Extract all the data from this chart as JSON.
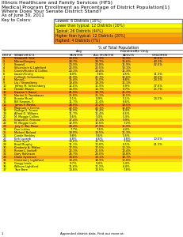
{
  "title_lines": [
    "Illinois Healthcare and Family Services (HFS)",
    "Medical Program Enrollment as Percentage of District Population[1]",
    "Where Does Your Senate District Stand?",
    "As of June 30, 2011"
  ],
  "key_title": "Key to Colors:",
  "legend": [
    {
      "label": "Lowest: 6 Districts (10%)",
      "color": "#FFFFFF"
    },
    {
      "label": "Lower than typical: 12 Districts (20%)",
      "color": "#FFFF00"
    },
    {
      "label": "Typical: 26 Districts (44%)",
      "color": "#FFD700"
    },
    {
      "label": "Higher than typical: 12 Districts (20%)",
      "color": "#FFA500"
    },
    {
      "label": "Highest: 4 Districts (7%)",
      "color": "#FF8C00"
    }
  ],
  "header1": "% of Total Population",
  "header2a": "Any",
  "header2b": "FamiliesMe Only",
  "col_headers": [
    "DIST#",
    "SENATOR/D.S.",
    "MONTHS",
    "ALL MONTHS",
    "ADULTS",
    "CHILDREN"
  ],
  "rows": [
    {
      "dist": "1",
      "senator": "Steans/M. Fine",
      "color": "#FF8C00",
      "months": "23.9%",
      "all_months": "22.9%",
      "adults": "13.9%",
      "children": "35.0%"
    },
    {
      "dist": "2",
      "senator": "Mulroe/Gregory",
      "color": "#FFA500",
      "months": "28.7%",
      "all_months": "28.7%",
      "adults": "16.6%",
      "children": "43.1%"
    },
    {
      "dist": "3",
      "senator": "Steans/I.",
      "color": "#FFD700",
      "months": "20.9%",
      "all_months": "20.8%",
      "adults": "11.9%",
      "children": "32.0%"
    },
    {
      "dist": "4",
      "senator": "Silverstein & Lightford",
      "color": "#FFD700",
      "months": "22.9%",
      "all_months": "22.5%",
      "adults": "13.1%",
      "children": ""
    },
    {
      "dist": "5",
      "senator": "Cronin/Hunter & Collins",
      "color": "#FFD700",
      "months": "20.1%",
      "all_months": "19.4%",
      "adults": "11.3%",
      "children": ""
    },
    {
      "dist": "6",
      "senator": "Lauzen/Crotty",
      "color": "#FFFF00",
      "months": "8.0%",
      "all_months": "7.8%",
      "adults": "4.5%",
      "children": "11.3%"
    },
    {
      "dist": "7",
      "senator": "Collins/J. Schuneberg",
      "color": "#FFD700",
      "months": "21.9%",
      "all_months": "21.7%",
      "adults": "12.6%",
      "children": "33.5%"
    },
    {
      "dist": "8",
      "senator": "Munro/L.",
      "color": "#FFD700",
      "months": "15.4%",
      "all_months": "15.0%",
      "adults": "8.8%",
      "children": "23.3%"
    },
    {
      "dist": "9",
      "senator": "Liu / Strandberg",
      "color": "#FFD700",
      "months": "19.4%",
      "all_months": "19.2%",
      "adults": "11.1%",
      "children": ""
    },
    {
      "dist": "10",
      "senator": "Jeffrey M. Schoenberg",
      "color": "#FFFF00",
      "months": "12.0%",
      "all_months": "11.9%",
      "adults": "6.9%",
      "children": "17.6%"
    },
    {
      "dist": "11",
      "senator": "Hendin Munro",
      "color": "#FFD700",
      "months": "16.9%",
      "all_months": "16.7%",
      "adults": "9.7%",
      "children": "25.7%"
    },
    {
      "dist": "12",
      "senator": "Kwame Y. Raoul",
      "color": "#FF8C00",
      "months": "41.9%",
      "all_months": "39.7%",
      "adults": "21.2%",
      "children": ""
    },
    {
      "dist": "13",
      "senator": "Martini S. Trumbauer",
      "color": "#FFD700",
      "months": "25.8%",
      "all_months": "25.1%",
      "adults": "14.5%",
      "children": ""
    },
    {
      "dist": "14",
      "senator": "Bonnie Murel",
      "color": "#FFFF00",
      "months": "9.1%",
      "all_months": "8.9%",
      "adults": "5.1%",
      "children": "13.5%"
    },
    {
      "dist": "15",
      "senator": "Bill Kwanas, F.",
      "color": "#FFFF00",
      "months": "11.7%",
      "all_months": "11.4%",
      "adults": "6.6%",
      "children": ""
    },
    {
      "dist": "16",
      "senator": "James F. Meeks",
      "color": "#FF8C00",
      "months": "38.9%",
      "all_months": "37.2%",
      "adults": "19.5%",
      "children": ""
    },
    {
      "dist": "17",
      "senator": "Magnum e Collins",
      "color": "#FFD700",
      "months": "22.9%",
      "all_months": "22.3%",
      "adults": "12.8%",
      "children": ""
    },
    {
      "dist": "18",
      "senator": "George S. Turner",
      "color": "#FFFF00",
      "months": "14.9%",
      "all_months": "14.4%",
      "adults": "8.3%",
      "children": ""
    },
    {
      "dist": "19",
      "senator": "Alfred D. Willams",
      "color": "#FFFF00",
      "months": "11.7%",
      "all_months": "11.4%",
      "adults": "6.5%",
      "children": ""
    },
    {
      "dist": "20",
      "senator": "M. Maggie Collins",
      "color": "#FFFF00",
      "months": "9.6%",
      "all_months": "9.3%",
      "adults": "5.3%",
      "children": ""
    },
    {
      "dist": "21",
      "senator": "Edward D. Petrone",
      "color": "#FFD700",
      "months": "17.4%",
      "all_months": "17.1%",
      "adults": "9.9%",
      "children": ""
    },
    {
      "dist": "22",
      "senator": "M. Maggie Curls",
      "color": "#FFFF00",
      "months": "12.9%",
      "all_months": "12.6%",
      "adults": "7.2%",
      "children": ""
    },
    {
      "dist": "23",
      "senator": "Judy C. Ber Mone",
      "color": "#FFA500",
      "months": "28.4%",
      "all_months": "27.9%",
      "adults": "15.9%",
      "children": ""
    },
    {
      "dist": "24",
      "senator": "Don Lukins",
      "color": "#FFFF00",
      "months": "7.7%",
      "all_months": "7.6%",
      "adults": "4.4%",
      "children": ""
    },
    {
      "dist": "25",
      "senator": "Michael Noland",
      "color": "#FFD700",
      "months": "19.9%",
      "all_months": "19.5%",
      "adults": "11.3%",
      "children": ""
    },
    {
      "dist": "26",
      "senator": "Carole Reckley",
      "color": "#FFFF00",
      "months": "9.8%",
      "all_months": "9.6%",
      "adults": "5.5%",
      "children": ""
    },
    {
      "dist": "27",
      "senator": "Kirk Luzardi",
      "color": "#FFFFFF",
      "months": "6.8%",
      "all_months": "6.6%",
      "adults": "3.8%",
      "children": "10.0%"
    },
    {
      "dist": "28",
      "senator": "Dave Syvll",
      "color": "#FFFF00",
      "months": "13.0%",
      "all_months": "12.7%",
      "adults": "7.3%",
      "children": ""
    },
    {
      "dist": "29",
      "senator": "Brad Murphy",
      "color": "#FFFF00",
      "months": "11.1%",
      "all_months": "10.8%",
      "adults": "6.1%",
      "children": "21.3%"
    },
    {
      "dist": "30",
      "senator": "Kimberly A. Miklos",
      "color": "#FFD700",
      "months": "17.9%",
      "all_months": "17.5%",
      "adults": "10.1%",
      "children": ""
    },
    {
      "dist": "31",
      "senator": "Renee L. Jackoff",
      "color": "#FFD700",
      "months": "22.1%",
      "all_months": "21.5%",
      "adults": "12.4%",
      "children": ""
    },
    {
      "dist": "32",
      "senator": "Gary Halveson",
      "color": "#FFD700",
      "months": "24.7%",
      "all_months": "24.0%",
      "adults": "13.8%",
      "children": ""
    },
    {
      "dist": "33",
      "senator": "Diane Syverson",
      "color": "#FFA500",
      "months": "33.6%",
      "all_months": "33.1%",
      "adults": "18.7%",
      "children": ""
    },
    {
      "dist": "34",
      "senator": "Christine J. Lightford",
      "color": "#FFD700",
      "months": "19.4%",
      "all_months": "18.9%",
      "adults": "10.8%",
      "children": ""
    },
    {
      "dist": "35",
      "senator": "Gregg Lewis",
      "color": "#FFFF00",
      "months": "9.7%",
      "all_months": "9.4%",
      "adults": "5.4%",
      "children": ""
    },
    {
      "dist": "36",
      "senator": "William Lightford",
      "color": "#FFFF00",
      "months": "11.6%",
      "all_months": "11.2%",
      "adults": "6.4%",
      "children": ""
    },
    {
      "dist": "37",
      "senator": "True Bore",
      "color": "#FFFF00",
      "months": "13.8%",
      "all_months": "13.5%",
      "adults": "7.8%",
      "children": ""
    }
  ],
  "footnote": "1",
  "footer": "Appended district data. Find out more at:"
}
